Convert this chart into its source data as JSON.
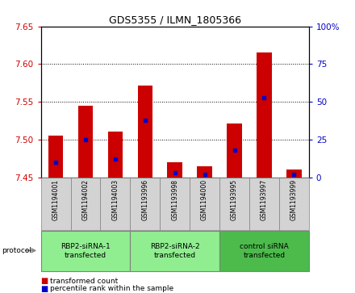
{
  "title": "GDS5355 / ILMN_1805366",
  "samples": [
    "GSM1194001",
    "GSM1194002",
    "GSM1194003",
    "GSM1193996",
    "GSM1193998",
    "GSM1194000",
    "GSM1193995",
    "GSM1193997",
    "GSM1193999"
  ],
  "transformed_counts": [
    7.505,
    7.545,
    7.511,
    7.572,
    7.47,
    7.465,
    7.521,
    7.615,
    7.46
  ],
  "percentile_ranks": [
    10,
    25,
    12,
    38,
    3,
    2,
    18,
    53,
    2
  ],
  "ylim": [
    7.45,
    7.65
  ],
  "yticks": [
    7.45,
    7.5,
    7.55,
    7.6,
    7.65
  ],
  "y2lim": [
    0,
    100
  ],
  "y2ticks": [
    0,
    25,
    50,
    75,
    100
  ],
  "bar_bottom": 7.45,
  "bar_color": "#cc0000",
  "percentile_color": "#0000cc",
  "sample_bg": "#d3d3d3",
  "groups": [
    {
      "label": "RBP2-siRNA-1\ntransfected",
      "start": 0,
      "end": 3,
      "color": "#90ee90"
    },
    {
      "label": "RBP2-siRNA-2\ntransfected",
      "start": 3,
      "end": 6,
      "color": "#90ee90"
    },
    {
      "label": "control siRNA\ntransfected",
      "start": 6,
      "end": 9,
      "color": "#4cbb4c"
    }
  ],
  "left_ycolor": "#cc0000",
  "right_ycolor": "#0000cc",
  "grid_color": "#000000",
  "plot_bg": "#ffffff",
  "bar_width": 0.5
}
